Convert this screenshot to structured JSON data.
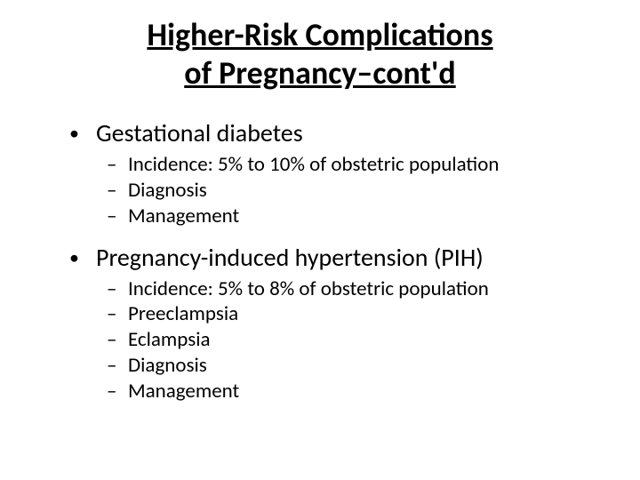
{
  "title_line1": "Higher-Risk Complications",
  "title_line2": "of Pregnancy–cont'd",
  "bullets": {
    "0": {
      "label": "Gestational diabetes",
      "subs": {
        "0": "Incidence: 5% to 10% of obstetric population",
        "1": "Diagnosis",
        "2": "Management"
      }
    },
    "1": {
      "label": "Pregnancy-induced hypertension (PIH)",
      "subs": {
        "0": "Incidence: 5% to 8% of obstetric population",
        "1": "Preeclampsia",
        "2": "Eclampsia",
        "3": "Diagnosis",
        "4": "Management"
      }
    }
  },
  "colors": {
    "background": "#ffffff",
    "text": "#000000"
  },
  "fonts": {
    "title_size_pt": 36,
    "bullet_size_pt": 28,
    "sub_size_pt": 23
  }
}
